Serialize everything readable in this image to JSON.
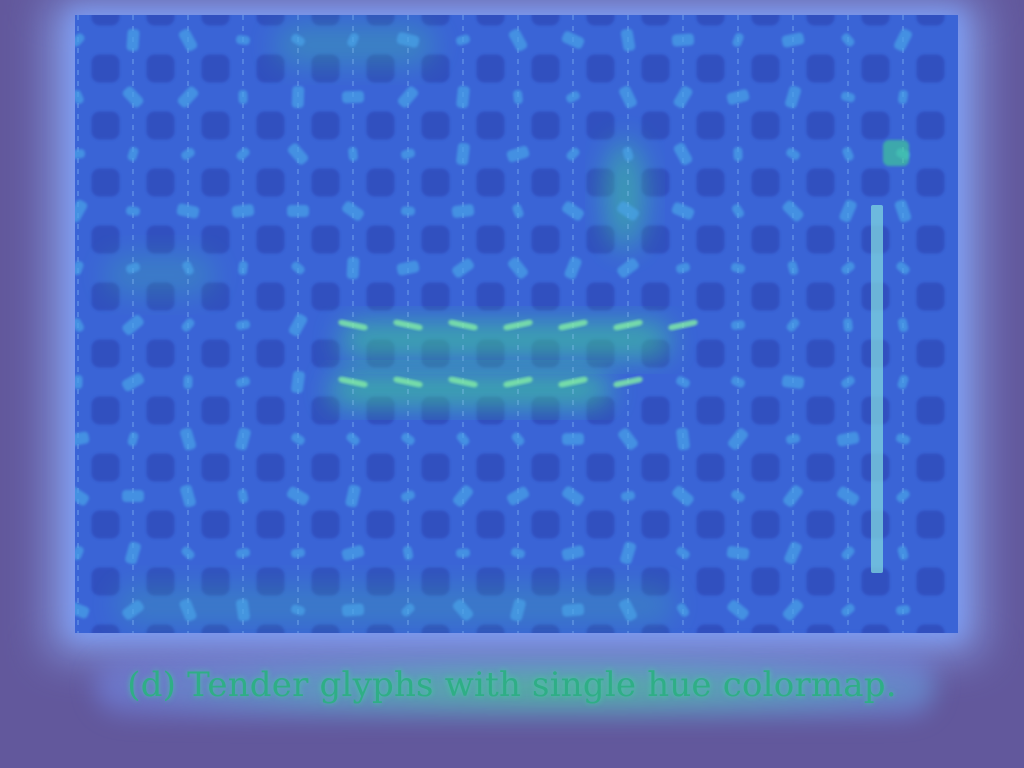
{
  "figure": {
    "caption": "(d) Tender glyphs with single hue colormap.",
    "grid": {
      "columns": 16,
      "rows": 11
    },
    "colors": {
      "background": "#62589c",
      "halo": "#8aa7f4",
      "panel": "#3a64d6",
      "cell_dark": "#2a3fae",
      "glyph": "#4aa3e8",
      "hot": "#3fe08a",
      "colorbar": "#7fd6e0"
    }
  }
}
